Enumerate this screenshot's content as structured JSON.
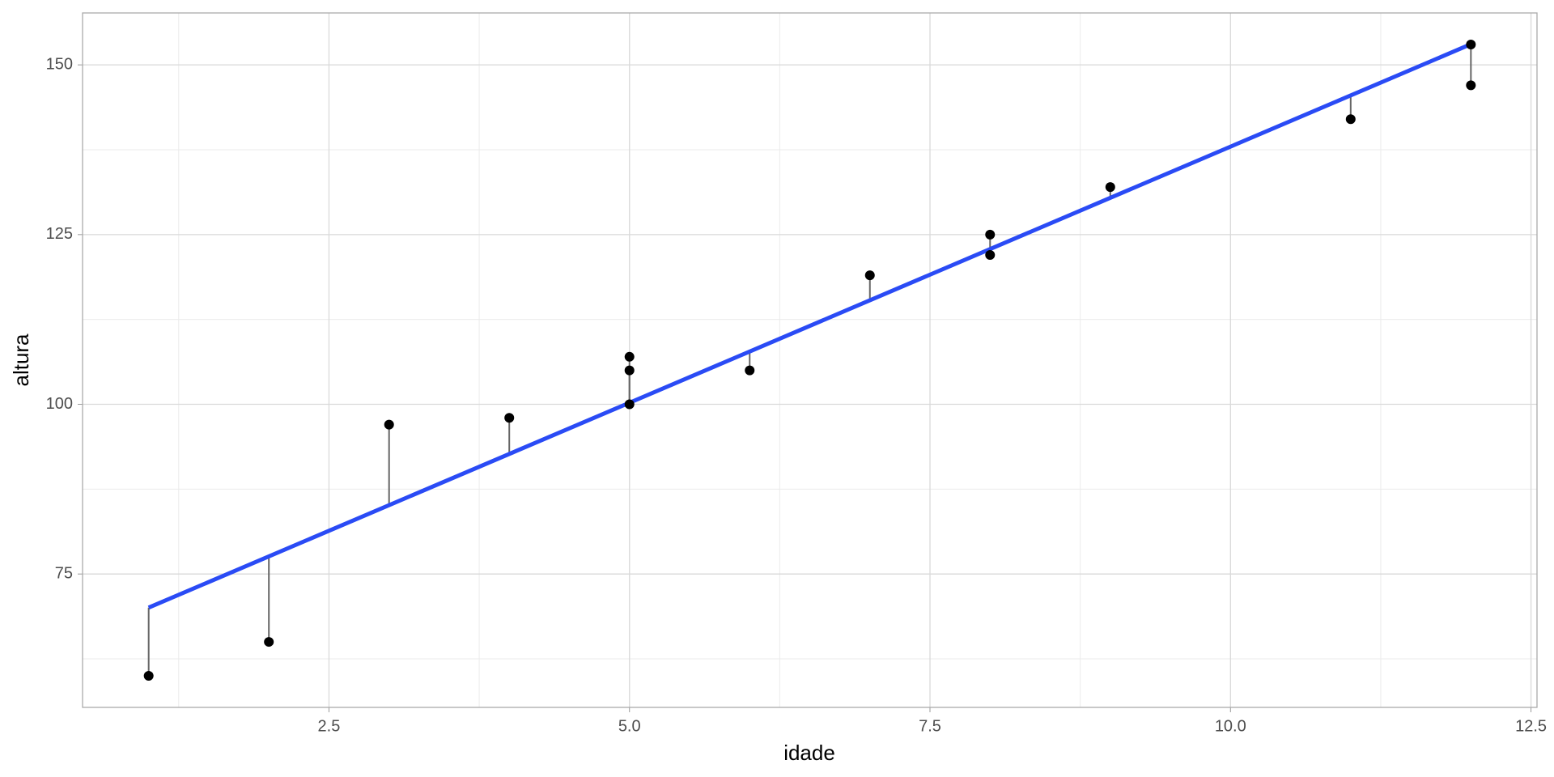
{
  "chart_data": {
    "type": "scatter",
    "x_label": "idade",
    "y_label": "altura",
    "x": [
      1,
      2,
      3,
      4,
      5,
      5,
      5,
      6,
      7,
      8,
      8,
      9,
      11,
      12,
      12
    ],
    "values": [
      60,
      65,
      97,
      98,
      100,
      105,
      107,
      105,
      119,
      122,
      125,
      132,
      142,
      147,
      153
    ],
    "color": "#000000",
    "fit_color": "#2a4bf5",
    "residual_color": "#666666",
    "xlim": [
      0.45,
      12.55
    ],
    "xticks": [
      2.5,
      {
        "value": 5,
        "label": "5.0"
      },
      7.5,
      {
        "value": 10,
        "label": "10.0"
      },
      12.5
    ],
    "ylim": [
      55.35,
      157.65
    ],
    "yticks": [
      75,
      100,
      125,
      150
    ],
    "grid": true
  }
}
